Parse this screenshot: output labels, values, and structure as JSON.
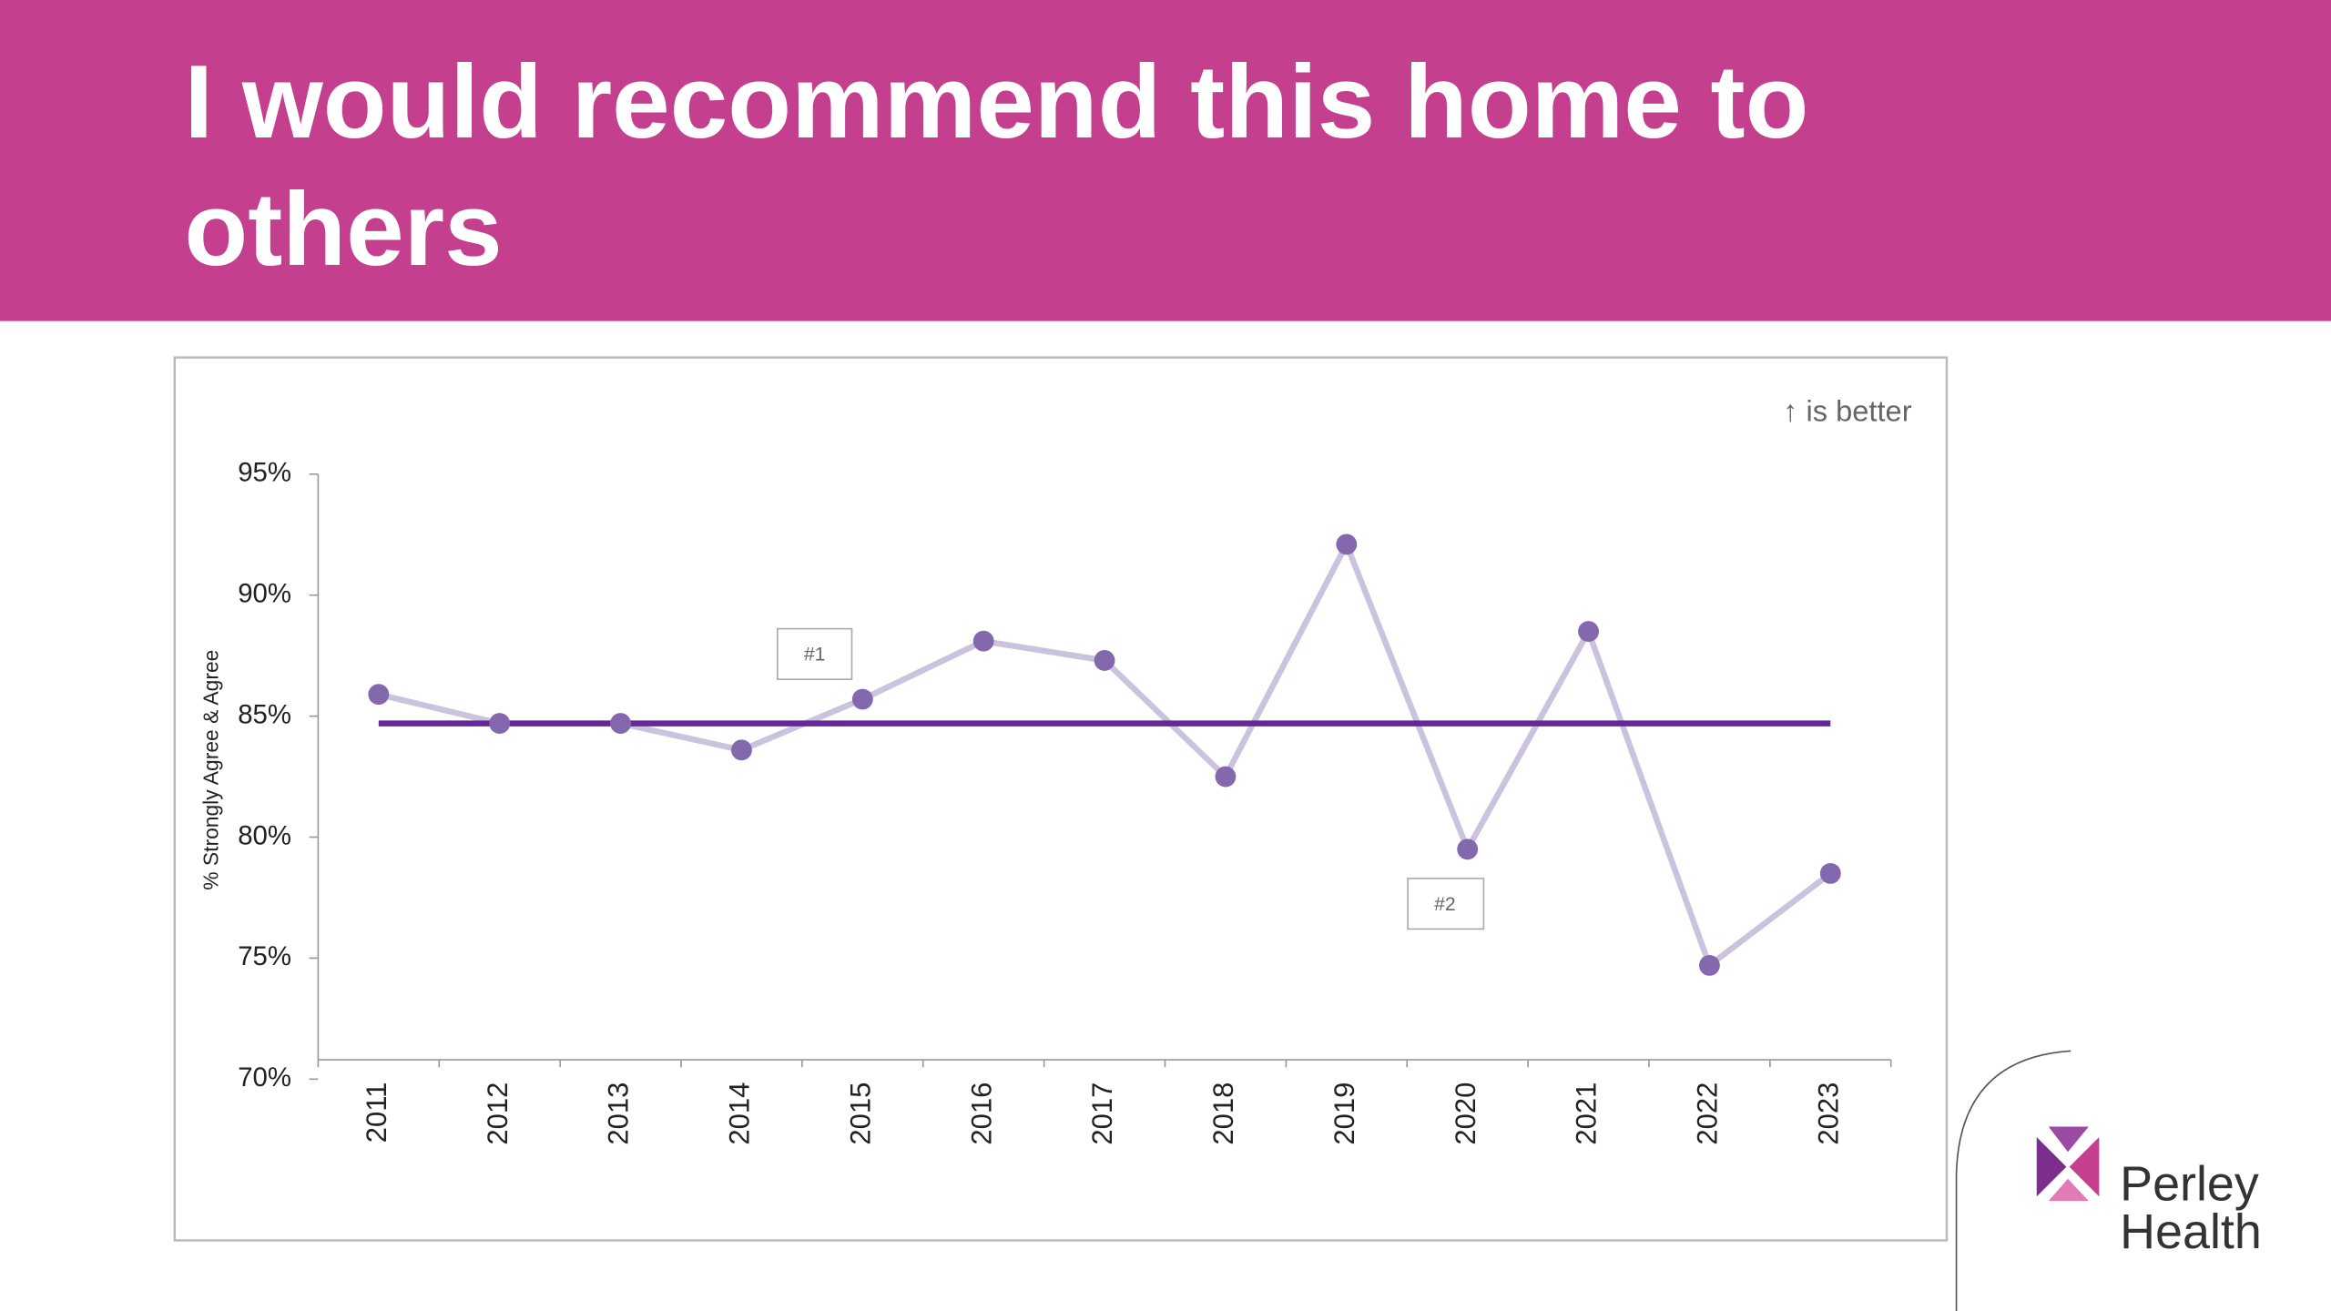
{
  "chart_data": {
    "type": "line",
    "title": "I would recommend this home to others",
    "y_label": "% Strongly Agree & Agree",
    "note": "↑ is better",
    "annotations": [
      "#1",
      "#2"
    ],
    "categories": [
      "2011",
      "2012",
      "2013",
      "2014",
      "2015",
      "2016",
      "2017",
      "2018",
      "2019",
      "2020",
      "2021",
      "2022",
      "2023"
    ],
    "series": [
      {
        "color": "#cbc3de",
        "marker_color": "#8468ad",
        "values": [
          85.9,
          84.7,
          84.7,
          83.6,
          85.7,
          88.1,
          87.3,
          82.5,
          92.1,
          79.5,
          88.5,
          74.7,
          78.5
        ]
      }
    ],
    "reference_line": {
      "value": 84.7,
      "color": "#65279a"
    },
    "ylim": [
      70,
      95
    ],
    "yticks": [
      {
        "value": 70,
        "label": "70%"
      },
      {
        "value": 75,
        "label": "75%"
      },
      {
        "value": 80,
        "label": "80%"
      },
      {
        "value": 85,
        "label": "85%"
      },
      {
        "value": 90,
        "label": "90%"
      },
      {
        "value": 95,
        "label": "95%"
      }
    ],
    "grid": false
  },
  "logo": [
    "Perley",
    "Health"
  ]
}
